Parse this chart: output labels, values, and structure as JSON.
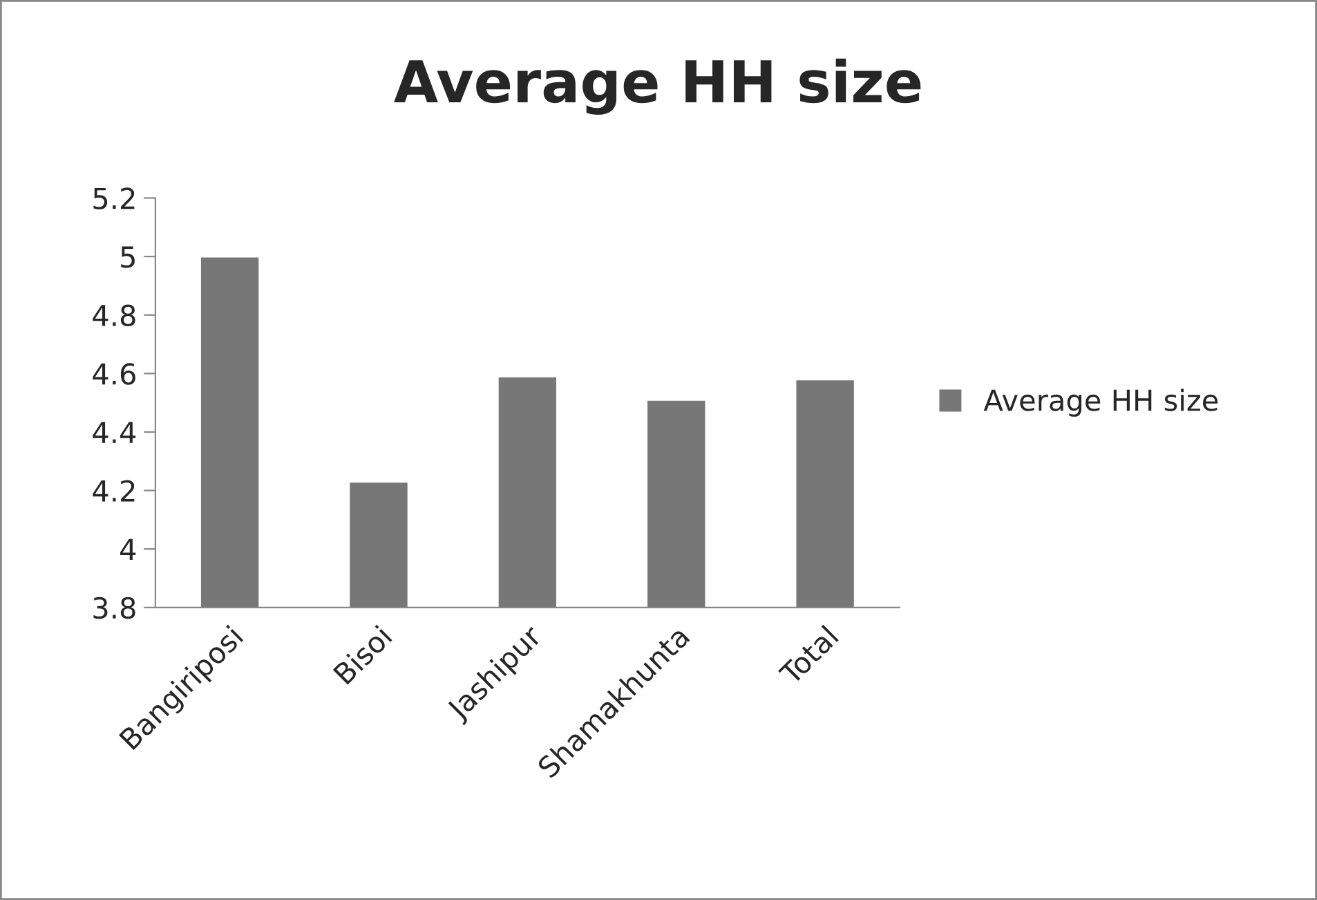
{
  "chart_data": {
    "type": "bar",
    "title": "Average HH size",
    "categories": [
      "Bangiriposi",
      "Bisoi",
      "Jashipur",
      "Shamakhunta",
      "Total"
    ],
    "series": [
      {
        "name": "Average HH size",
        "color": "#777777",
        "values": [
          5.0,
          4.23,
          4.59,
          4.51,
          4.58
        ]
      }
    ],
    "ylim": [
      3.8,
      5.2
    ],
    "yticks": [
      {
        "value": 3.8,
        "label": "3.8"
      },
      {
        "value": 4.0,
        "label": "4"
      },
      {
        "value": 4.2,
        "label": "4.2"
      },
      {
        "value": 4.4,
        "label": "4.4"
      },
      {
        "value": 4.6,
        "label": "4.6"
      },
      {
        "value": 4.8,
        "label": "4.8"
      },
      {
        "value": 5.0,
        "label": "5"
      },
      {
        "value": 5.2,
        "label": "5.2"
      }
    ],
    "grid": false,
    "legend": "right"
  }
}
